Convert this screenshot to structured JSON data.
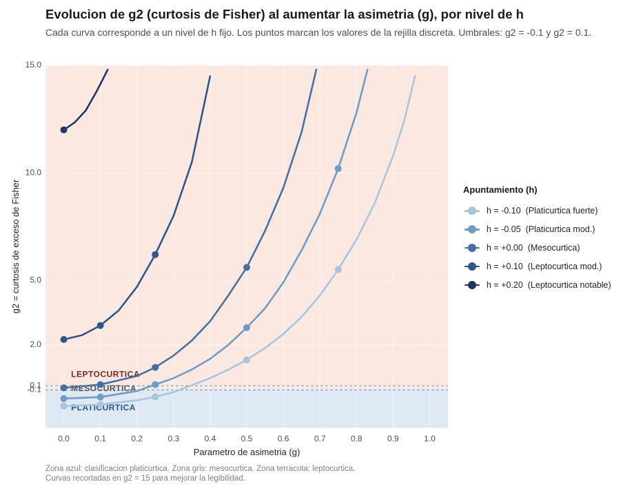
{
  "title": "Evolucion de g2 (curtosis de Fisher) al aumentar la asimetria (g), por nivel de h",
  "subtitle": "Cada curva corresponde a un nivel de h fijo. Los puntos marcan los valores de la rejilla discreta. Umbrales: g2 = -0.1 y g2 = 0.1.",
  "caption": [
    "Zona azul: clasificacion platicurtica. Zona gris: mesocurtica. Zona terracota: leptocurtica.",
    "Curvas recortadas en g2 = 15 para mejorar la legibilidad."
  ],
  "legend": {
    "title": "Apuntamiento (h)"
  },
  "colors": {
    "zone_platicurtica": "#dfe9f3",
    "zone_leptocurtica": "#fbe9e1",
    "label_leptocurtica": "#7b2a20",
    "label_mesocurtica": "#555555",
    "label_platicurtica": "#23518a"
  },
  "chart_data": {
    "type": "line",
    "title": "Evolucion de g2 (curtosis de Fisher) al aumentar la asimetria (g), por nivel de h",
    "xlabel": "Parametro de asimetria (g)",
    "ylabel": "g2 = curtosis de exceso de Fisher",
    "xlim": [
      -0.05,
      1.05
    ],
    "ylim": [
      -1.85,
      15.0
    ],
    "x_ticks": [
      0.0,
      0.1,
      0.2,
      0.3,
      0.4,
      0.5,
      0.6,
      0.7,
      0.8,
      0.9,
      1.0
    ],
    "x_tick_labels": [
      "0.0",
      "0.1",
      "0.2",
      "0.3",
      "0.4",
      "0.5",
      "0.6",
      "0.7",
      "0.8",
      "0.9",
      "1.0"
    ],
    "y_ticks": [
      -0.1,
      0.1,
      2.0,
      5.0,
      10.0,
      15.0
    ],
    "y_tick_labels": [
      "-0.1",
      "0.1",
      "2.0",
      "5.0",
      "10.0",
      "15.0"
    ],
    "thresholds": [
      -0.1,
      0.1
    ],
    "zones": [
      {
        "name": "PLATICURTICA",
        "from": -1.85,
        "to": -0.1,
        "color": "#dfe9f3",
        "label": "PLATICURTICA",
        "label_y": -0.95
      },
      {
        "name": "MESOCURTICA",
        "from": -0.1,
        "to": 0.1,
        "color": "#ececec",
        "label": "MESOCURTICA",
        "label_y": -0.05
      },
      {
        "name": "LEPTOCURTICA",
        "from": 0.1,
        "to": 15.0,
        "color": "#fbe9e1",
        "label": "LEPTOCURTICA",
        "label_y": 0.6
      }
    ],
    "zone_label_x": 0.02,
    "grid": true,
    "legend_position": "right",
    "clip_at": 15.0,
    "series": [
      {
        "name": "h = -0.10  (Platicurtica fuerte)",
        "color": "#a9c4dd",
        "curve": [
          [
            0.0,
            -0.85
          ],
          [
            0.1,
            -0.78
          ],
          [
            0.2,
            -0.58
          ],
          [
            0.25,
            -0.42
          ],
          [
            0.3,
            -0.2
          ],
          [
            0.35,
            0.12
          ],
          [
            0.4,
            0.45
          ],
          [
            0.45,
            0.85
          ],
          [
            0.5,
            1.3
          ],
          [
            0.55,
            1.85
          ],
          [
            0.6,
            2.5
          ],
          [
            0.65,
            3.3
          ],
          [
            0.7,
            4.3
          ],
          [
            0.75,
            5.5
          ],
          [
            0.8,
            6.9
          ],
          [
            0.85,
            8.6
          ],
          [
            0.9,
            10.8
          ],
          [
            0.93,
            12.4
          ],
          [
            0.96,
            14.5
          ]
        ],
        "points": [
          [
            0.0,
            -0.85
          ],
          [
            0.1,
            -0.78
          ],
          [
            0.25,
            -0.42
          ],
          [
            0.5,
            1.3
          ],
          [
            0.75,
            5.5
          ]
        ]
      },
      {
        "name": "h = -0.05  (Platicurtica mod.)",
        "color": "#6e9bc7",
        "curve": [
          [
            0.0,
            -0.5
          ],
          [
            0.1,
            -0.43
          ],
          [
            0.2,
            -0.15
          ],
          [
            0.25,
            0.15
          ],
          [
            0.3,
            0.45
          ],
          [
            0.35,
            0.85
          ],
          [
            0.4,
            1.35
          ],
          [
            0.45,
            2.0
          ],
          [
            0.5,
            2.8
          ],
          [
            0.55,
            3.7
          ],
          [
            0.6,
            4.9
          ],
          [
            0.65,
            6.4
          ],
          [
            0.7,
            8.1
          ],
          [
            0.75,
            10.2
          ],
          [
            0.8,
            12.8
          ],
          [
            0.83,
            14.8
          ]
        ],
        "points": [
          [
            0.0,
            -0.5
          ],
          [
            0.1,
            -0.43
          ],
          [
            0.25,
            0.15
          ],
          [
            0.5,
            2.8
          ],
          [
            0.75,
            10.2
          ]
        ]
      },
      {
        "name": "h = +0.00  (Mesocurtica)",
        "color": "#4470a3",
        "curve": [
          [
            0.0,
            0.0
          ],
          [
            0.1,
            0.15
          ],
          [
            0.2,
            0.55
          ],
          [
            0.25,
            0.95
          ],
          [
            0.3,
            1.5
          ],
          [
            0.35,
            2.2
          ],
          [
            0.4,
            3.1
          ],
          [
            0.45,
            4.3
          ],
          [
            0.5,
            5.6
          ],
          [
            0.55,
            7.3
          ],
          [
            0.6,
            9.3
          ],
          [
            0.65,
            11.9
          ],
          [
            0.69,
            14.8
          ]
        ],
        "points": [
          [
            0.0,
            0.0
          ],
          [
            0.1,
            0.15
          ],
          [
            0.25,
            0.95
          ],
          [
            0.5,
            5.6
          ]
        ]
      },
      {
        "name": "h = +0.10  (Leptocurtica mod.)",
        "color": "#2d568b",
        "curve": [
          [
            0.0,
            2.25
          ],
          [
            0.05,
            2.45
          ],
          [
            0.1,
            2.9
          ],
          [
            0.15,
            3.6
          ],
          [
            0.2,
            4.7
          ],
          [
            0.25,
            6.2
          ],
          [
            0.3,
            8.0
          ],
          [
            0.35,
            10.5
          ],
          [
            0.4,
            14.5
          ]
        ],
        "points": [
          [
            0.0,
            2.25
          ],
          [
            0.1,
            2.9
          ],
          [
            0.25,
            6.2
          ]
        ]
      },
      {
        "name": "h = +0.20  (Leptocurtica notable)",
        "color": "#1c3760",
        "curve": [
          [
            0.0,
            12.0
          ],
          [
            0.03,
            12.35
          ],
          [
            0.06,
            12.9
          ],
          [
            0.09,
            13.8
          ],
          [
            0.12,
            14.8
          ]
        ],
        "points": [
          [
            0.0,
            12.0
          ]
        ]
      }
    ]
  }
}
